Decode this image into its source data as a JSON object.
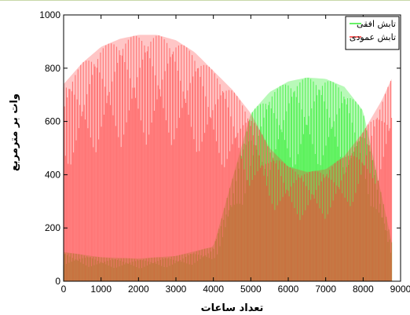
{
  "chart_data": {
    "type": "area",
    "xlabel": "تعداد ساعات",
    "ylabel": "وات بر مترمربع",
    "xlim": [
      0,
      9000
    ],
    "ylim": [
      0,
      1000
    ],
    "x_ticks": [
      "0",
      "1000",
      "2000",
      "3000",
      "4000",
      "5000",
      "6000",
      "7000",
      "8000",
      "9000"
    ],
    "y_ticks": [
      "0",
      "200",
      "400",
      "600",
      "800",
      "1000"
    ],
    "legend_position": "top-right",
    "grid": false,
    "series": [
      {
        "name": "تابش افقی",
        "color": "#33ee33",
        "envelope_x": [
          0,
          1000,
          2000,
          3000,
          4000,
          5000,
          5500,
          6000,
          6500,
          7000,
          7500,
          8000,
          8760
        ],
        "envelope_max": [
          110,
          90,
          85,
          95,
          130,
          630,
          710,
          750,
          765,
          760,
          730,
          640,
          150
        ]
      },
      {
        "name": "تابش عمودی",
        "color": "#ff3333",
        "envelope_x": [
          0,
          500,
          1000,
          1500,
          2000,
          2500,
          3000,
          3500,
          4000,
          4500,
          5000,
          5500,
          6000,
          6500,
          7000,
          7500,
          8000,
          8500,
          8760
        ],
        "envelope_max": [
          740,
          820,
          880,
          910,
          925,
          925,
          905,
          860,
          790,
          720,
          630,
          500,
          430,
          410,
          420,
          470,
          560,
          680,
          760
        ]
      }
    ]
  }
}
